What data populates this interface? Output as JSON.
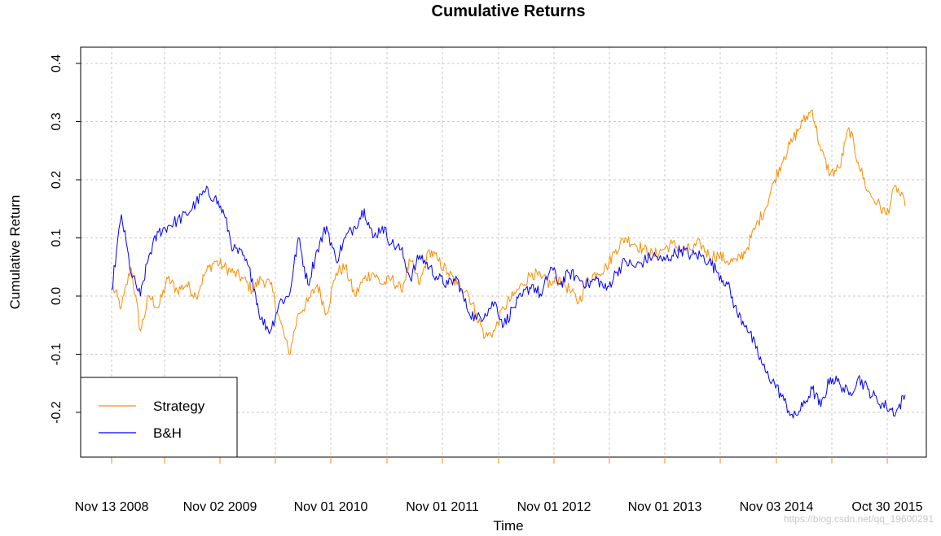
{
  "chart_data": {
    "type": "line",
    "title": "Cumulative Returns",
    "xlabel": "Time",
    "ylabel": "Cumulative Return",
    "ylim": [
      -0.25,
      0.4
    ],
    "y_ticks": [
      -0.2,
      -0.1,
      0.0,
      0.1,
      0.2,
      0.3,
      0.4
    ],
    "y_tick_labels": [
      "-0.2",
      "-0.1",
      "0.0",
      "0.1",
      "0.2",
      "0.3",
      "0.4"
    ],
    "x_tick_labels": [
      "Nov 13 2008",
      "Nov 02 2009",
      "Nov 01 2010",
      "Nov 01 2011",
      "Nov 01 2012",
      "Nov 01 2013",
      "Nov 03 2014",
      "Oct 30 2015"
    ],
    "grid": true,
    "legend_position": "bottom-left",
    "series": [
      {
        "name": "Strategy",
        "color": "#FF8C00",
        "x": [
          "2008-11-13",
          "2008-12-15",
          "2009-01-15",
          "2009-02-15",
          "2009-03-15",
          "2009-04-15",
          "2009-05-15",
          "2009-06-15",
          "2009-07-15",
          "2009-08-15",
          "2009-09-15",
          "2009-10-15",
          "2009-11-15",
          "2009-12-15",
          "2010-01-15",
          "2010-02-15",
          "2010-03-15",
          "2010-04-15",
          "2010-05-15",
          "2010-06-15",
          "2010-07-15",
          "2010-08-15",
          "2010-09-15",
          "2010-10-15",
          "2010-11-15",
          "2010-12-15",
          "2011-01-15",
          "2011-02-15",
          "2011-03-15",
          "2011-04-15",
          "2011-05-15",
          "2011-06-15",
          "2011-07-15",
          "2011-08-15",
          "2011-09-15",
          "2011-10-15",
          "2011-11-15",
          "2011-12-15",
          "2012-01-15",
          "2012-02-15",
          "2012-03-15",
          "2012-04-15",
          "2012-05-15",
          "2012-06-15",
          "2012-07-15",
          "2012-08-15",
          "2012-09-15",
          "2012-10-15",
          "2012-11-15",
          "2012-12-15",
          "2013-01-15",
          "2013-02-15",
          "2013-03-15",
          "2013-04-15",
          "2013-05-15",
          "2013-06-15",
          "2013-07-15",
          "2013-08-15",
          "2013-09-15",
          "2013-10-15",
          "2013-11-15",
          "2013-12-15",
          "2014-01-15",
          "2014-02-15",
          "2014-03-15",
          "2014-04-15",
          "2014-05-15",
          "2014-06-15",
          "2014-07-15",
          "2014-08-15",
          "2014-09-15",
          "2014-10-15",
          "2014-11-15",
          "2014-12-15",
          "2015-01-15",
          "2015-02-15",
          "2015-03-15",
          "2015-04-15",
          "2015-05-15",
          "2015-06-15",
          "2015-07-15",
          "2015-08-15",
          "2015-09-15",
          "2015-10-15",
          "2015-11-15",
          "2015-12-15"
        ],
        "values": [
          0.02,
          -0.02,
          0.05,
          -0.06,
          0.0,
          -0.02,
          0.03,
          0.01,
          0.02,
          0.0,
          0.04,
          0.06,
          0.05,
          0.04,
          0.03,
          0.01,
          0.03,
          0.02,
          -0.04,
          -0.1,
          -0.03,
          -0.01,
          0.02,
          -0.03,
          0.04,
          0.05,
          0.0,
          0.03,
          0.04,
          0.02,
          0.03,
          0.01,
          0.06,
          0.02,
          0.08,
          0.06,
          0.04,
          0.02,
          0.01,
          -0.03,
          -0.07,
          -0.06,
          -0.02,
          0.0,
          0.02,
          0.04,
          0.03,
          0.02,
          0.03,
          0.01,
          -0.01,
          0.03,
          0.04,
          0.05,
          0.08,
          0.1,
          0.09,
          0.08,
          0.07,
          0.08,
          0.09,
          0.08,
          0.08,
          0.09,
          0.07,
          0.07,
          0.06,
          0.06,
          0.08,
          0.12,
          0.15,
          0.2,
          0.24,
          0.27,
          0.3,
          0.32,
          0.25,
          0.21,
          0.22,
          0.29,
          0.23,
          0.18,
          0.16,
          0.14,
          0.19,
          0.155
        ]
      },
      {
        "name": "B&H",
        "color": "#0000FF",
        "x": [
          "2008-11-13",
          "2008-12-15",
          "2009-01-15",
          "2009-02-15",
          "2009-03-15",
          "2009-04-15",
          "2009-05-15",
          "2009-06-15",
          "2009-07-15",
          "2009-08-15",
          "2009-09-15",
          "2009-10-15",
          "2009-11-15",
          "2009-12-15",
          "2010-01-15",
          "2010-02-15",
          "2010-03-15",
          "2010-04-15",
          "2010-05-15",
          "2010-06-15",
          "2010-07-15",
          "2010-08-15",
          "2010-09-15",
          "2010-10-15",
          "2010-11-15",
          "2010-12-15",
          "2011-01-15",
          "2011-02-15",
          "2011-03-15",
          "2011-04-15",
          "2011-05-15",
          "2011-06-15",
          "2011-07-15",
          "2011-08-15",
          "2011-09-15",
          "2011-10-15",
          "2011-11-15",
          "2011-12-15",
          "2012-01-15",
          "2012-02-15",
          "2012-03-15",
          "2012-04-15",
          "2012-05-15",
          "2012-06-15",
          "2012-07-15",
          "2012-08-15",
          "2012-09-15",
          "2012-10-15",
          "2012-11-15",
          "2012-12-15",
          "2013-01-15",
          "2013-02-15",
          "2013-03-15",
          "2013-04-15",
          "2013-05-15",
          "2013-06-15",
          "2013-07-15",
          "2013-08-15",
          "2013-09-15",
          "2013-10-15",
          "2013-11-15",
          "2013-12-15",
          "2014-01-15",
          "2014-02-15",
          "2014-03-15",
          "2014-04-15",
          "2014-05-15",
          "2014-06-15",
          "2014-07-15",
          "2014-08-15",
          "2014-09-15",
          "2014-10-15",
          "2014-11-15",
          "2014-12-15",
          "2015-01-15",
          "2015-02-15",
          "2015-03-15",
          "2015-04-15",
          "2015-05-15",
          "2015-06-15",
          "2015-07-15",
          "2015-08-15",
          "2015-09-15",
          "2015-10-15",
          "2015-11-15",
          "2015-12-15"
        ],
        "values": [
          0.01,
          0.14,
          0.04,
          0.0,
          0.07,
          0.11,
          0.12,
          0.13,
          0.14,
          0.16,
          0.18,
          0.17,
          0.14,
          0.08,
          0.07,
          0.03,
          -0.04,
          -0.06,
          -0.01,
          0.0,
          0.1,
          0.02,
          0.08,
          0.12,
          0.06,
          0.1,
          0.12,
          0.15,
          0.1,
          0.12,
          0.09,
          0.08,
          0.03,
          0.07,
          0.05,
          0.03,
          0.02,
          0.03,
          -0.02,
          -0.04,
          -0.03,
          -0.01,
          -0.05,
          -0.02,
          0.0,
          0.02,
          0.0,
          0.05,
          0.02,
          0.04,
          0.03,
          0.02,
          0.03,
          0.01,
          0.04,
          0.06,
          0.05,
          0.06,
          0.07,
          0.06,
          0.07,
          0.08,
          0.07,
          0.07,
          0.06,
          0.04,
          0.02,
          -0.03,
          -0.05,
          -0.09,
          -0.13,
          -0.15,
          -0.18,
          -0.21,
          -0.19,
          -0.16,
          -0.19,
          -0.14,
          -0.15,
          -0.17,
          -0.14,
          -0.16,
          -0.18,
          -0.19,
          -0.2,
          -0.17
        ]
      }
    ]
  },
  "watermark": "https://blog.csdn.net/qq_19600291"
}
